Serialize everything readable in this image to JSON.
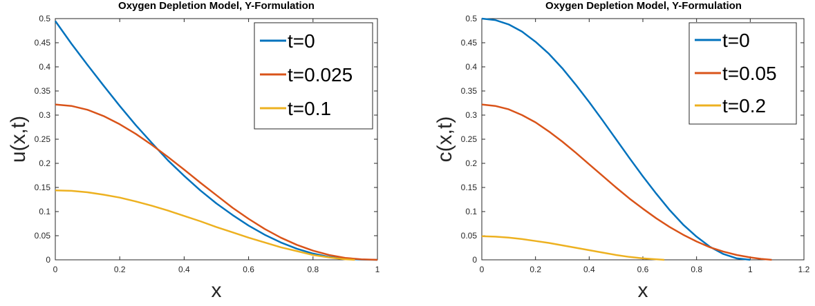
{
  "chart_data": [
    {
      "type": "line",
      "title": "Oxygen Depletion Model, Y-Formulation",
      "xlabel": "x",
      "ylabel": "u(x,t)",
      "xlim": [
        0,
        1
      ],
      "ylim": [
        0,
        0.5
      ],
      "xticks": [
        "0",
        "0.2",
        "0.4",
        "0.6",
        "0.8",
        "1"
      ],
      "yticks": [
        "0",
        "0.05",
        "0.1",
        "0.15",
        "0.2",
        "0.25",
        "0.3",
        "0.35",
        "0.4",
        "0.45",
        "0.5"
      ],
      "legend_position": "top-right",
      "grid": false,
      "series": [
        {
          "name": "t=0",
          "color": "#0072BD",
          "x": [
            0,
            0.05,
            0.1,
            0.15,
            0.2,
            0.25,
            0.3,
            0.35,
            0.4,
            0.45,
            0.5,
            0.55,
            0.6,
            0.65,
            0.7,
            0.75,
            0.8,
            0.85,
            0.9,
            0.95,
            1.0
          ],
          "y": [
            0.495,
            0.448,
            0.404,
            0.361,
            0.319,
            0.279,
            0.242,
            0.206,
            0.174,
            0.144,
            0.117,
            0.093,
            0.071,
            0.052,
            0.036,
            0.023,
            0.013,
            0.006,
            0.002,
            0.0005,
            0
          ]
        },
        {
          "name": "t=0.025",
          "color": "#D95319",
          "x": [
            0,
            0.05,
            0.1,
            0.15,
            0.2,
            0.25,
            0.3,
            0.35,
            0.4,
            0.45,
            0.5,
            0.55,
            0.6,
            0.65,
            0.7,
            0.75,
            0.8,
            0.85,
            0.9,
            0.95,
            1.0
          ],
          "y": [
            0.322,
            0.319,
            0.311,
            0.298,
            0.281,
            0.261,
            0.238,
            0.213,
            0.187,
            0.16,
            0.134,
            0.108,
            0.085,
            0.064,
            0.046,
            0.031,
            0.019,
            0.01,
            0.004,
            0.001,
            0
          ]
        },
        {
          "name": "t=0.1",
          "color": "#EDB120",
          "x": [
            0,
            0.05,
            0.1,
            0.15,
            0.2,
            0.25,
            0.3,
            0.35,
            0.4,
            0.45,
            0.5,
            0.55,
            0.6,
            0.65,
            0.7,
            0.75,
            0.8,
            0.85,
            0.9,
            0.93
          ],
          "y": [
            0.144,
            0.143,
            0.14,
            0.135,
            0.129,
            0.121,
            0.112,
            0.102,
            0.091,
            0.08,
            0.068,
            0.057,
            0.046,
            0.036,
            0.026,
            0.018,
            0.01,
            0.005,
            0.001,
            0
          ]
        }
      ]
    },
    {
      "type": "line",
      "title": "Oxygen Depletion Model, Y-Formulation",
      "xlabel": "x",
      "ylabel": "c(x,t)",
      "xlim": [
        0,
        1.2
      ],
      "ylim": [
        0,
        0.5
      ],
      "xticks": [
        "0",
        "0.2",
        "0.4",
        "0.6",
        "0.8",
        "1",
        "1.2"
      ],
      "yticks": [
        "0",
        "0.05",
        "0.1",
        "0.15",
        "0.2",
        "0.25",
        "0.3",
        "0.35",
        "0.4",
        "0.45",
        "0.5"
      ],
      "legend_position": "top-right",
      "grid": false,
      "series": [
        {
          "name": "t=0",
          "color": "#0072BD",
          "x": [
            0,
            0.05,
            0.1,
            0.15,
            0.2,
            0.25,
            0.3,
            0.35,
            0.4,
            0.45,
            0.5,
            0.55,
            0.6,
            0.65,
            0.7,
            0.75,
            0.8,
            0.85,
            0.9,
            0.95,
            1.0
          ],
          "y": [
            0.5,
            0.497,
            0.488,
            0.473,
            0.452,
            0.427,
            0.397,
            0.363,
            0.327,
            0.289,
            0.25,
            0.211,
            0.173,
            0.137,
            0.103,
            0.073,
            0.048,
            0.027,
            0.012,
            0.003,
            0
          ]
        },
        {
          "name": "t=0.05",
          "color": "#D95319",
          "x": [
            0,
            0.05,
            0.1,
            0.15,
            0.2,
            0.25,
            0.3,
            0.35,
            0.4,
            0.45,
            0.5,
            0.55,
            0.6,
            0.65,
            0.7,
            0.75,
            0.8,
            0.85,
            0.9,
            0.95,
            1.0,
            1.04,
            1.08
          ],
          "y": [
            0.322,
            0.319,
            0.312,
            0.3,
            0.285,
            0.266,
            0.245,
            0.222,
            0.198,
            0.174,
            0.15,
            0.127,
            0.106,
            0.086,
            0.068,
            0.052,
            0.038,
            0.026,
            0.017,
            0.01,
            0.005,
            0.002,
            0
          ]
        },
        {
          "name": "t=0.2",
          "color": "#EDB120",
          "x": [
            0,
            0.05,
            0.1,
            0.15,
            0.2,
            0.25,
            0.3,
            0.35,
            0.4,
            0.45,
            0.5,
            0.55,
            0.6,
            0.65,
            0.68
          ],
          "y": [
            0.049,
            0.048,
            0.046,
            0.043,
            0.039,
            0.035,
            0.03,
            0.025,
            0.02,
            0.015,
            0.01,
            0.006,
            0.003,
            0.001,
            0
          ]
        }
      ]
    }
  ]
}
